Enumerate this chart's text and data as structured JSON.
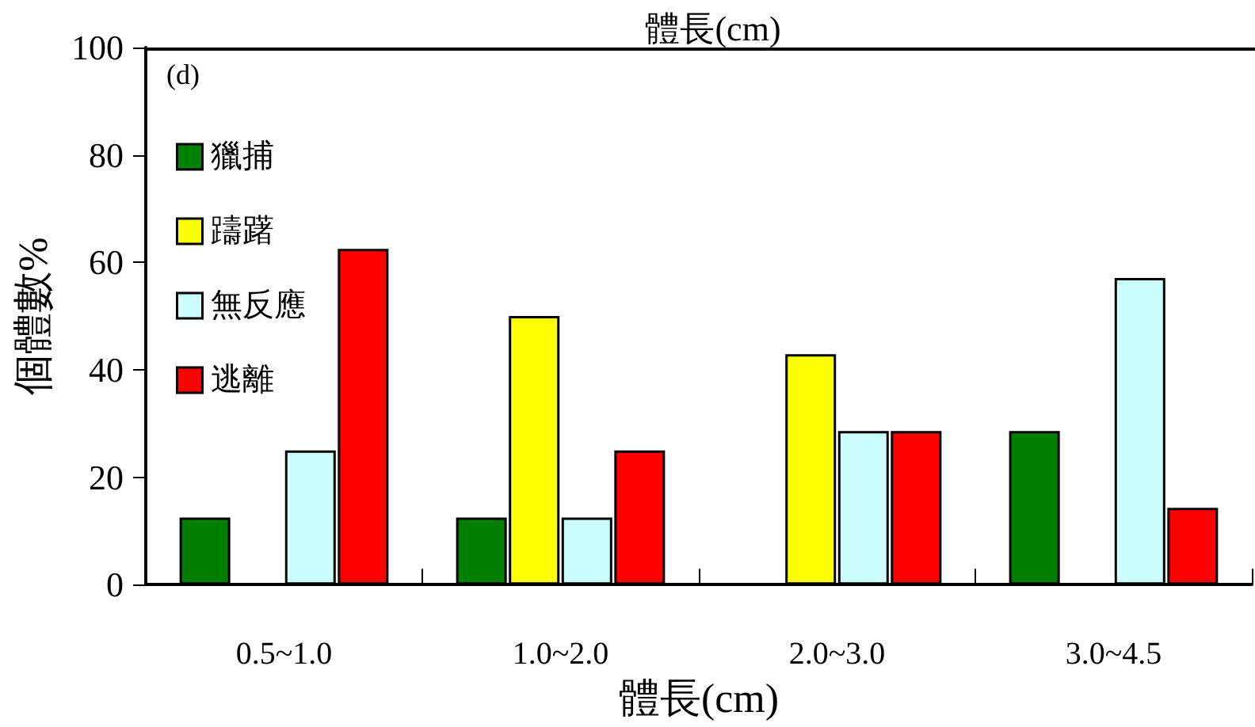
{
  "chart_data": {
    "type": "bar",
    "title": "體長(cm)",
    "xlabel": "體長(cm)",
    "ylabel": "個體數%",
    "annotations": [
      "(d)"
    ],
    "categories": [
      "0.5~1.0",
      "1.0~2.0",
      "2.0~3.0",
      "3.0~4.5"
    ],
    "series": [
      {
        "name": "獵捕",
        "color": "#008000",
        "values": [
          12.5,
          12.5,
          null,
          28.6
        ]
      },
      {
        "name": "躊躇",
        "color": "#ffff00",
        "values": [
          null,
          50,
          42.9,
          null
        ]
      },
      {
        "name": "無反應",
        "color": "#ccffff",
        "values": [
          25,
          12.5,
          28.6,
          57.1
        ]
      },
      {
        "name": "逃離",
        "color": "#ff0000",
        "values": [
          62.5,
          25,
          28.6,
          14.3
        ]
      }
    ],
    "ylim": [
      0,
      100
    ],
    "yticks": [
      0,
      20,
      40,
      60,
      80,
      100
    ],
    "grid": false,
    "legend": "top left"
  }
}
